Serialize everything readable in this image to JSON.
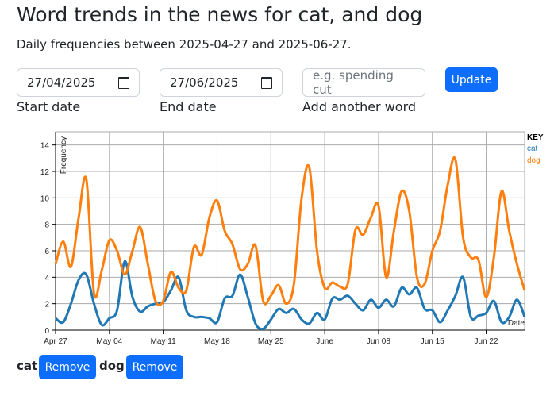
{
  "title": "Word trends in the news for cat, and dog",
  "subtitle": "Daily frequencies between 2025-04-27 and 2025-06-27.",
  "form": {
    "start_value": "27/04/2025",
    "end_value": "27/06/2025",
    "word_placeholder": "e.g. spending cut",
    "start_label": "Start date",
    "end_label": "End date",
    "word_label": "Add another word",
    "update_label": "Update"
  },
  "words": [
    {
      "word": "cat",
      "remove_label": "Remove"
    },
    {
      "word": "dog",
      "remove_label": "Remove"
    }
  ],
  "chart_data": {
    "type": "line",
    "xlabel": "Date",
    "ylabel": "Frequency",
    "x_start": "2025-04-27",
    "x_end": "2025-06-27",
    "ylim": [
      0,
      15
    ],
    "grid": true,
    "legend_title": "KEY",
    "legend_position": "right",
    "xticks": [
      {
        "day": 0,
        "label": "Apr 27"
      },
      {
        "day": 7,
        "label": "May 04"
      },
      {
        "day": 14,
        "label": "May 11"
      },
      {
        "day": 21,
        "label": "May 18"
      },
      {
        "day": 28,
        "label": "May 25"
      },
      {
        "day": 35,
        "label": "June"
      },
      {
        "day": 42,
        "label": "Jun 08"
      },
      {
        "day": 49,
        "label": "Jun 15"
      },
      {
        "day": 56,
        "label": "Jun 22"
      }
    ],
    "yticks": [
      0,
      2,
      4,
      6,
      8,
      10,
      12,
      14
    ],
    "series": [
      {
        "name": "cat",
        "color": "#1f77b4",
        "values": [
          0.9,
          0.6,
          2.0,
          3.8,
          4.2,
          2.0,
          0.4,
          0.9,
          1.5,
          5.2,
          2.5,
          1.4,
          1.8,
          2.0,
          2.1,
          3.0,
          4.0,
          1.5,
          1.0,
          1.0,
          0.9,
          0.6,
          2.4,
          2.6,
          4.2,
          2.5,
          0.5,
          0.1,
          0.8,
          1.6,
          1.3,
          1.6,
          0.8,
          0.5,
          1.3,
          0.8,
          2.4,
          2.3,
          2.6,
          2.0,
          1.5,
          2.3,
          1.7,
          2.3,
          1.8,
          3.2,
          2.7,
          3.2,
          1.6,
          1.5,
          0.6,
          1.5,
          2.6,
          4.0,
          1.0,
          1.1,
          1.3,
          2.2,
          0.6,
          1.0,
          2.3,
          1.0
        ]
      },
      {
        "name": "dog",
        "color": "#ff7f0e",
        "values": [
          5.0,
          6.7,
          4.8,
          8.5,
          11.4,
          2.8,
          4.5,
          6.8,
          6.0,
          4.2,
          6.0,
          7.8,
          5.0,
          2.2,
          2.2,
          4.4,
          3.2,
          3.0,
          6.3,
          5.7,
          8.5,
          9.8,
          7.5,
          6.5,
          4.6,
          5.0,
          6.4,
          2.2,
          2.6,
          3.4,
          2.0,
          3.5,
          10.0,
          12.3,
          6.0,
          3.2,
          3.6,
          3.3,
          3.5,
          7.6,
          7.2,
          8.5,
          9.4,
          4.0,
          7.5,
          10.5,
          9.0,
          4.0,
          3.5,
          6.0,
          7.5,
          11.0,
          12.9,
          7.0,
          5.5,
          5.3,
          2.5,
          5.5,
          10.5,
          7.5,
          5.0,
          3.0
        ]
      }
    ]
  }
}
